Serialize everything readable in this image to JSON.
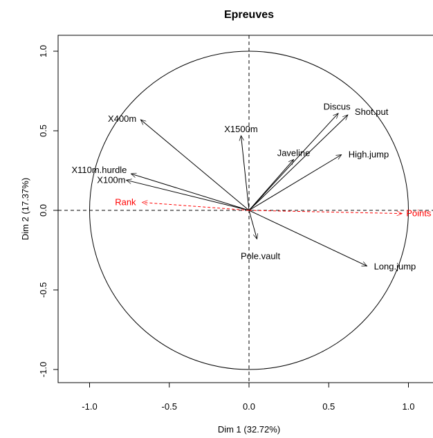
{
  "chart_data": {
    "type": "scatter",
    "subtype": "pca-correlation-circle",
    "title": "Epreuves",
    "xlabel": "Dim 1 (32.72%)",
    "ylabel": "Dim 2 (17.37%)",
    "xlim": [
      -1.2,
      1.2
    ],
    "ylim": [
      -1.07,
      1.07
    ],
    "xticks": [
      -1.0,
      -0.5,
      0.0,
      0.5,
      1.0
    ],
    "xtick_labels": [
      "-1.0",
      "-0.5",
      "0.0",
      "0.5",
      "1.0"
    ],
    "yticks": [
      -1.0,
      -0.5,
      0.0,
      0.5,
      1.0
    ],
    "ytick_labels": [
      "-1.0",
      "-0.5",
      "0.0",
      "0.5",
      "1.0"
    ],
    "unit_circle": true,
    "reference_lines": [
      0,
      0
    ],
    "grid": false,
    "series": [
      {
        "style": "active",
        "color": "#000000",
        "line": "solid",
        "points": [
          {
            "name": "X100m",
            "x": -0.77,
            "y": 0.19
          },
          {
            "name": "X110m.hurdle",
            "x": -0.74,
            "y": 0.23
          },
          {
            "name": "X400m",
            "x": -0.68,
            "y": 0.57
          },
          {
            "name": "X1500m",
            "x": -0.05,
            "y": 0.47
          },
          {
            "name": "Discus",
            "x": 0.56,
            "y": 0.61
          },
          {
            "name": "Shot.put",
            "x": 0.62,
            "y": 0.6
          },
          {
            "name": "Javeline",
            "x": 0.28,
            "y": 0.32
          },
          {
            "name": "High.jump",
            "x": 0.58,
            "y": 0.35
          },
          {
            "name": "Pole.vault",
            "x": 0.05,
            "y": -0.18
          },
          {
            "name": "Long.jump",
            "x": 0.74,
            "y": -0.35
          }
        ]
      },
      {
        "style": "supplementary",
        "color": "#ff0000",
        "line": "dashed",
        "points": [
          {
            "name": "Rank",
            "x": -0.67,
            "y": 0.05
          },
          {
            "name": "Points",
            "x": 0.96,
            "y": -0.02
          }
        ]
      }
    ]
  }
}
